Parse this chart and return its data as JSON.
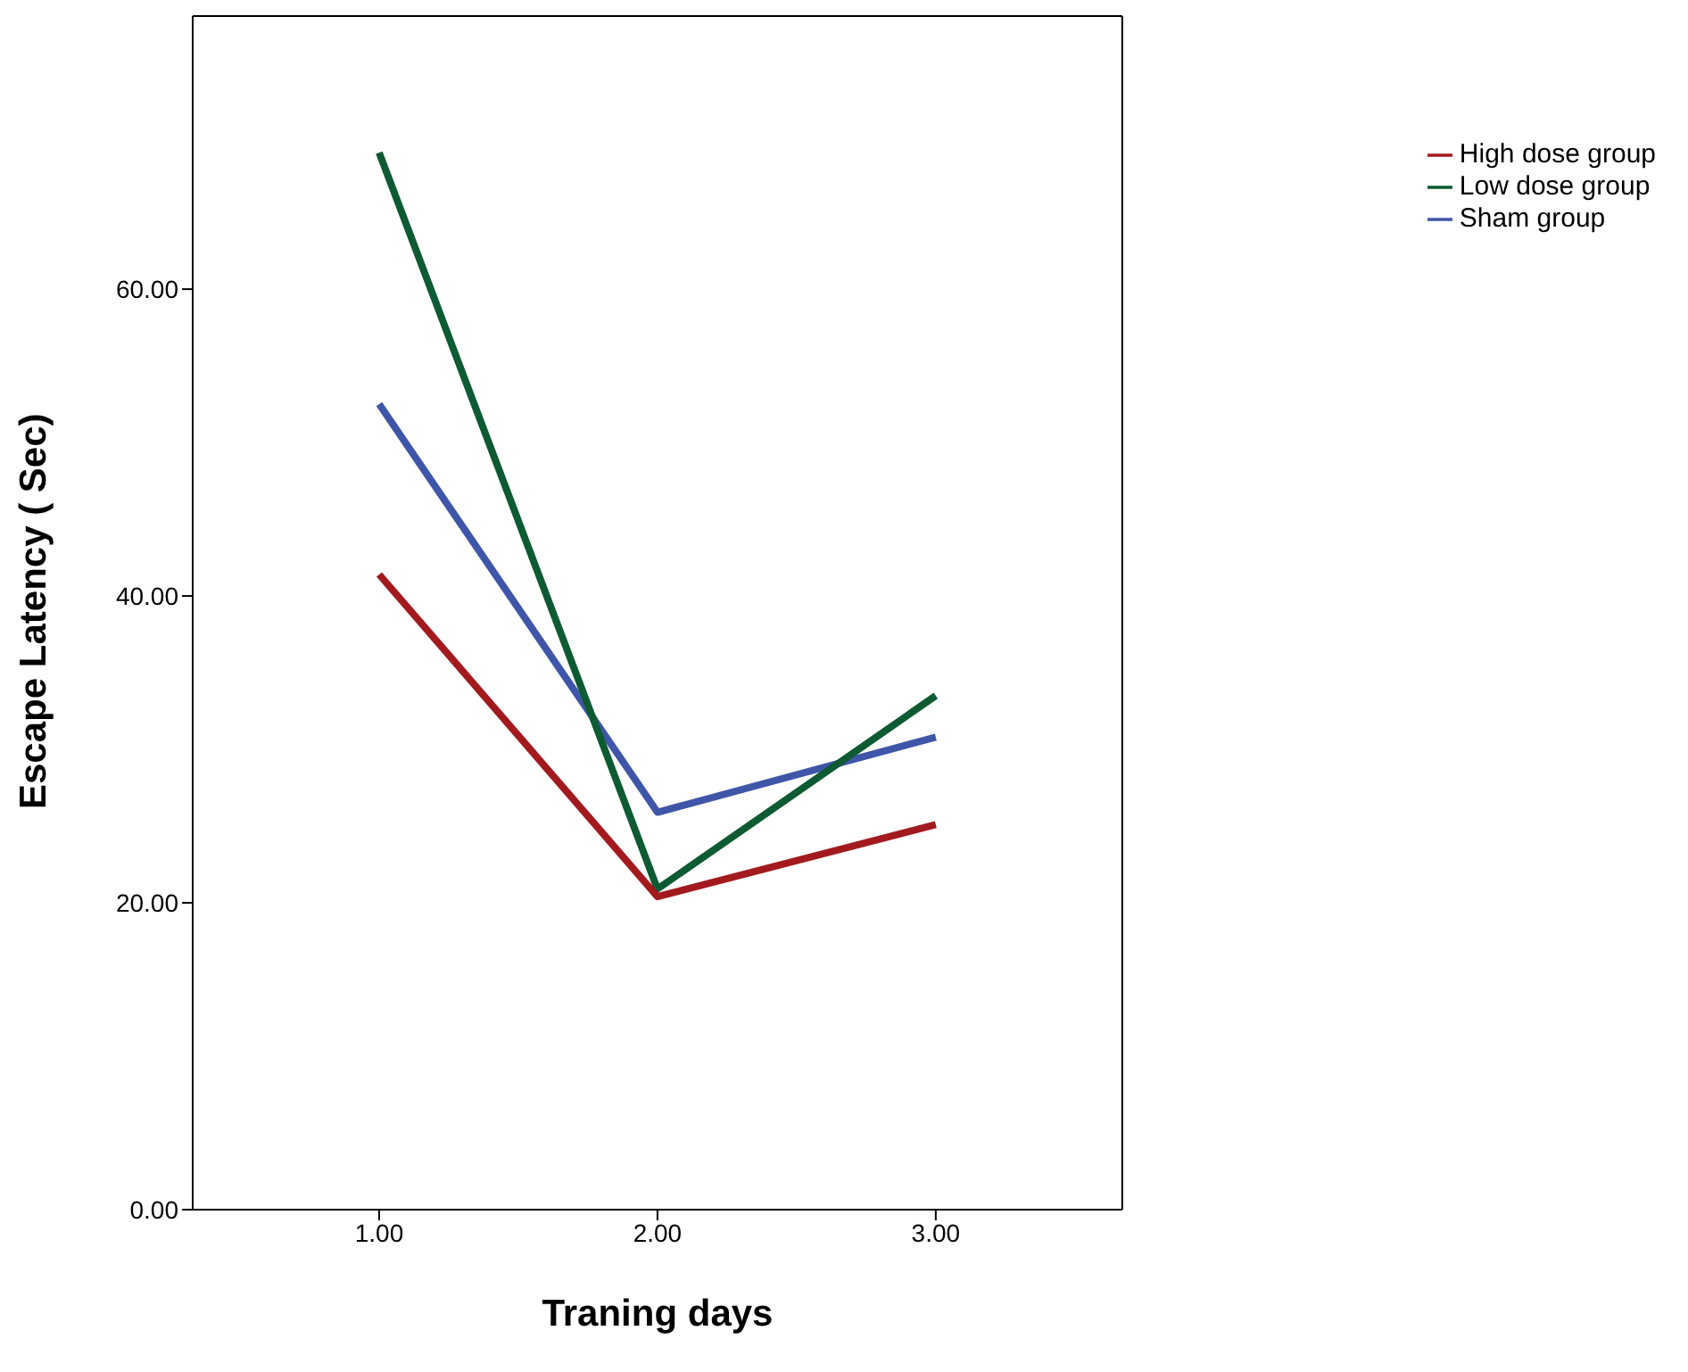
{
  "chart_data": {
    "type": "line",
    "xlabel": "Traning days",
    "ylabel": "Escape Latency ( Sec)",
    "x": [
      1,
      2,
      3
    ],
    "series": [
      {
        "name": "Sham group",
        "color": "#3f56a8",
        "values": [
          52.5,
          25.9,
          30.8
        ]
      },
      {
        "name": "Low  dose group",
        "color": "#0e5a32",
        "values": [
          68.9,
          20.9,
          33.5
        ]
      },
      {
        "name": "High dose group",
        "color": "#a31a1e",
        "values": [
          41.4,
          20.4,
          25.1
        ]
      }
    ],
    "xlim": [
      0.33,
      3.67
    ],
    "xticks": [
      {
        "value": 1,
        "label": "1.00"
      },
      {
        "value": 2,
        "label": "2.00"
      },
      {
        "value": 3,
        "label": "3.00"
      }
    ],
    "ylim": [
      0,
      77.8
    ],
    "yticks": [
      {
        "value": 0,
        "label": "0.00"
      },
      {
        "value": 20,
        "label": "20.00"
      },
      {
        "value": 40,
        "label": "40.00"
      },
      {
        "value": 60,
        "label": "60.00"
      }
    ],
    "grid": false,
    "legend": "top right",
    "marker": "none",
    "line_style": "solid"
  }
}
